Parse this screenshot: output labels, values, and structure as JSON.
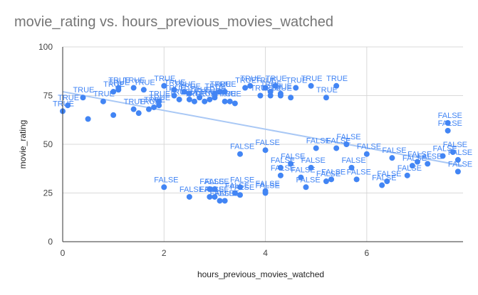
{
  "chart_data": {
    "type": "scatter",
    "title": "movie_rating vs. hours_previous_movies_watched",
    "xlabel": "hours_previous_movies_watched",
    "ylabel": "movie_rating",
    "xlim": [
      0,
      7.9
    ],
    "ylim": [
      0,
      100
    ],
    "x_ticks": [
      "0",
      "2",
      "4",
      "6"
    ],
    "y_ticks": [
      "0",
      "25",
      "50",
      "75",
      "100"
    ],
    "grid": true,
    "legend": "none",
    "trendline": {
      "type": "linear",
      "start": [
        0,
        77
      ],
      "end": [
        7.9,
        39
      ]
    },
    "colors": {
      "points": "#4285f4",
      "labels": "#4285f4",
      "trendline": "#a9c8f5",
      "grid": "#d9d9d9",
      "axis": "#333333"
    },
    "points": [
      {
        "x": 0.0,
        "y": 67,
        "label": "TRUE"
      },
      {
        "x": 0.1,
        "y": 70,
        "label": "TRUE"
      },
      {
        "x": 0.4,
        "y": 74,
        "label": "TRUE"
      },
      {
        "x": 0.5,
        "y": 63,
        "label": ""
      },
      {
        "x": 0.8,
        "y": 72,
        "label": "TRUE"
      },
      {
        "x": 1.0,
        "y": 77,
        "label": "TRUE"
      },
      {
        "x": 1.0,
        "y": 65,
        "label": ""
      },
      {
        "x": 1.1,
        "y": 78,
        "label": "TRUE"
      },
      {
        "x": 1.1,
        "y": 79,
        "label": "TRUE"
      },
      {
        "x": 1.4,
        "y": 79,
        "label": "TRUE"
      },
      {
        "x": 1.4,
        "y": 68,
        "label": "TRUE"
      },
      {
        "x": 1.5,
        "y": 66,
        "label": ""
      },
      {
        "x": 1.6,
        "y": 78,
        "label": "TRUE"
      },
      {
        "x": 1.7,
        "y": 68,
        "label": "TRUE"
      },
      {
        "x": 1.8,
        "y": 69,
        "label": "TRUE"
      },
      {
        "x": 1.9,
        "y": 70,
        "label": "TRUE"
      },
      {
        "x": 1.9,
        "y": 72,
        "label": "TRUE"
      },
      {
        "x": 2.0,
        "y": 80,
        "label": "TRUE"
      },
      {
        "x": 2.2,
        "y": 75,
        "label": "TRUE"
      },
      {
        "x": 2.2,
        "y": 78,
        "label": "TRUE"
      },
      {
        "x": 2.3,
        "y": 73,
        "label": "TRUE"
      },
      {
        "x": 2.4,
        "y": 77,
        "label": "TRUE"
      },
      {
        "x": 2.5,
        "y": 76,
        "label": "TRUE"
      },
      {
        "x": 2.5,
        "y": 73,
        "label": "TRUE"
      },
      {
        "x": 2.6,
        "y": 72,
        "label": "TRUE"
      },
      {
        "x": 2.7,
        "y": 74,
        "label": "TRUE"
      },
      {
        "x": 2.8,
        "y": 72,
        "label": "TRUE"
      },
      {
        "x": 2.9,
        "y": 73,
        "label": "TRUE"
      },
      {
        "x": 3.0,
        "y": 76,
        "label": "TRUE"
      },
      {
        "x": 3.0,
        "y": 74,
        "label": "TRUE"
      },
      {
        "x": 3.1,
        "y": 77,
        "label": "TRUE"
      },
      {
        "x": 3.2,
        "y": 77,
        "label": "TRUE"
      },
      {
        "x": 3.2,
        "y": 72,
        "label": "TRUE"
      },
      {
        "x": 3.3,
        "y": 72,
        "label": "TRUE"
      },
      {
        "x": 3.4,
        "y": 71,
        "label": ""
      },
      {
        "x": 3.6,
        "y": 79,
        "label": "TRUE"
      },
      {
        "x": 3.7,
        "y": 80,
        "label": "TRUE"
      },
      {
        "x": 3.9,
        "y": 75,
        "label": "TRUE"
      },
      {
        "x": 4.0,
        "y": 79,
        "label": "TRUE"
      },
      {
        "x": 4.1,
        "y": 75,
        "label": "TRUE"
      },
      {
        "x": 4.1,
        "y": 77,
        "label": "TRUE"
      },
      {
        "x": 4.2,
        "y": 80,
        "label": "TRUE"
      },
      {
        "x": 4.3,
        "y": 76,
        "label": "TRUE"
      },
      {
        "x": 4.3,
        "y": 75,
        "label": "TRUE"
      },
      {
        "x": 4.5,
        "y": 74,
        "label": ""
      },
      {
        "x": 4.6,
        "y": 79,
        "label": "TRUE"
      },
      {
        "x": 4.9,
        "y": 80,
        "label": "TRUE"
      },
      {
        "x": 5.2,
        "y": 74,
        "label": "TRUE"
      },
      {
        "x": 5.4,
        "y": 80,
        "label": "TRUE"
      },
      {
        "x": 2.0,
        "y": 28,
        "label": "FALSE"
      },
      {
        "x": 2.5,
        "y": 23,
        "label": "FALSE"
      },
      {
        "x": 2.9,
        "y": 27,
        "label": "FALSE"
      },
      {
        "x": 2.9,
        "y": 23,
        "label": "FALSE"
      },
      {
        "x": 3.0,
        "y": 27,
        "label": "FALSE"
      },
      {
        "x": 3.0,
        "y": 23,
        "label": "FALSE"
      },
      {
        "x": 3.1,
        "y": 21,
        "label": "FALSE"
      },
      {
        "x": 3.2,
        "y": 21,
        "label": "FALSE"
      },
      {
        "x": 3.4,
        "y": 25,
        "label": "FALSE"
      },
      {
        "x": 3.5,
        "y": 24,
        "label": "FALSE"
      },
      {
        "x": 3.5,
        "y": 28,
        "label": "FALSE"
      },
      {
        "x": 3.5,
        "y": 45,
        "label": "FALSE"
      },
      {
        "x": 4.0,
        "y": 26,
        "label": "FALSE"
      },
      {
        "x": 4.0,
        "y": 25,
        "label": "FALSE"
      },
      {
        "x": 4.0,
        "y": 47,
        "label": "FALSE"
      },
      {
        "x": 4.3,
        "y": 38,
        "label": "FALSE"
      },
      {
        "x": 4.3,
        "y": 34,
        "label": "FALSE"
      },
      {
        "x": 4.5,
        "y": 40,
        "label": "FALSE"
      },
      {
        "x": 4.7,
        "y": 33,
        "label": "FALSE"
      },
      {
        "x": 4.8,
        "y": 28,
        "label": "FALSE"
      },
      {
        "x": 4.9,
        "y": 38,
        "label": "FALSE"
      },
      {
        "x": 5.0,
        "y": 48,
        "label": "FALSE"
      },
      {
        "x": 5.2,
        "y": 31,
        "label": "FALSE"
      },
      {
        "x": 5.3,
        "y": 32,
        "label": "FALSE"
      },
      {
        "x": 5.4,
        "y": 48,
        "label": "FALSE"
      },
      {
        "x": 5.6,
        "y": 50,
        "label": "FALSE"
      },
      {
        "x": 5.7,
        "y": 38,
        "label": "FALSE"
      },
      {
        "x": 5.8,
        "y": 32,
        "label": "FALSE"
      },
      {
        "x": 6.0,
        "y": 45,
        "label": "FALSE"
      },
      {
        "x": 6.3,
        "y": 29,
        "label": "FALSE"
      },
      {
        "x": 6.4,
        "y": 31,
        "label": "FALSE"
      },
      {
        "x": 6.5,
        "y": 43,
        "label": "FALSE"
      },
      {
        "x": 6.8,
        "y": 34,
        "label": "FALSE"
      },
      {
        "x": 6.9,
        "y": 39,
        "label": "FALSE"
      },
      {
        "x": 7.0,
        "y": 41,
        "label": "FALSE"
      },
      {
        "x": 7.2,
        "y": 40,
        "label": "FALSE"
      },
      {
        "x": 7.5,
        "y": 44,
        "label": "FALSE"
      },
      {
        "x": 7.6,
        "y": 61,
        "label": "FALSE"
      },
      {
        "x": 7.6,
        "y": 57,
        "label": "FALSE"
      },
      {
        "x": 7.7,
        "y": 46,
        "label": "FALSE"
      },
      {
        "x": 7.8,
        "y": 42,
        "label": "FALSE"
      },
      {
        "x": 7.8,
        "y": 36,
        "label": "FALSE"
      }
    ]
  }
}
